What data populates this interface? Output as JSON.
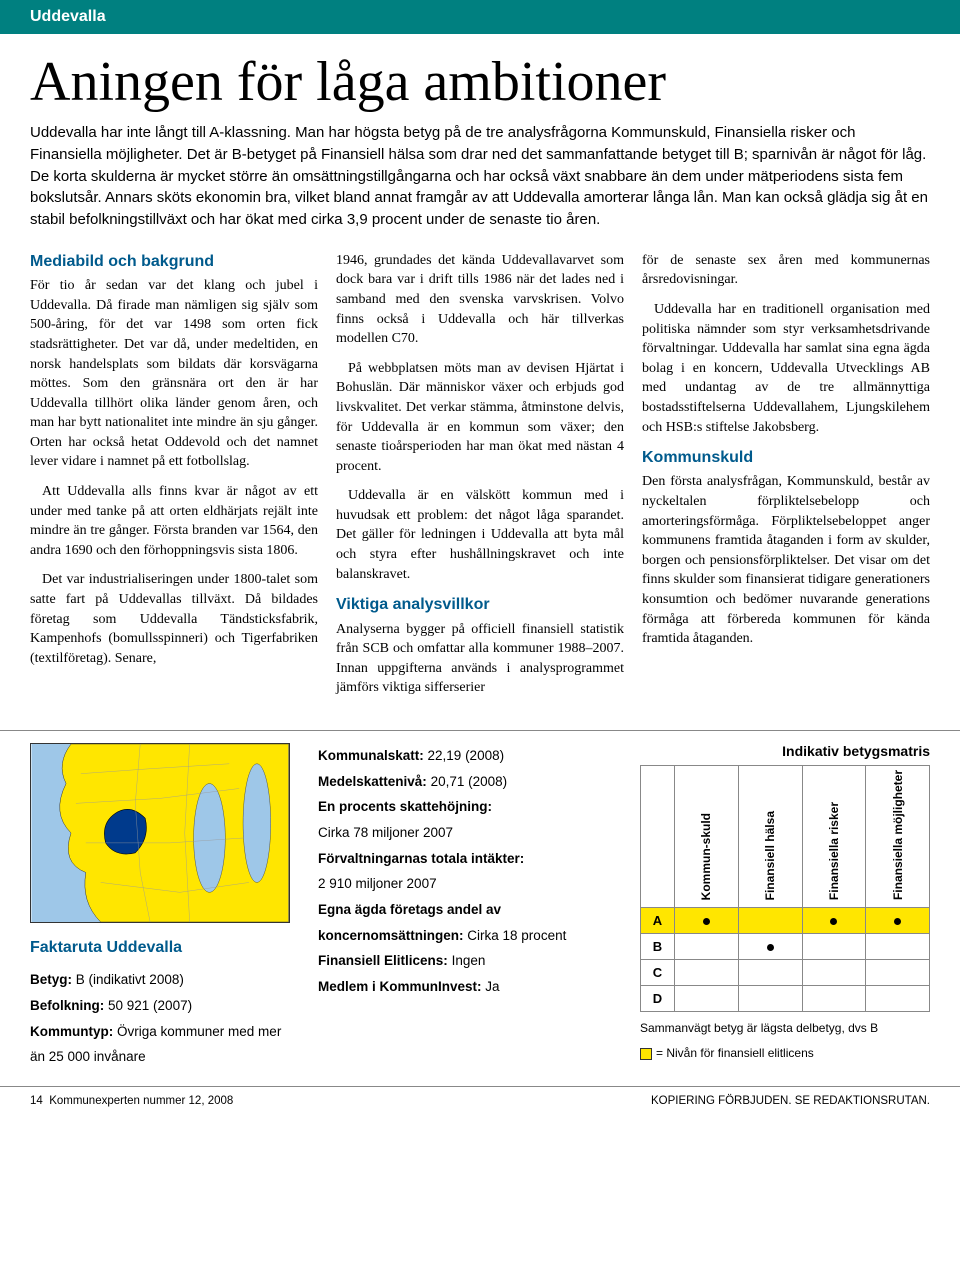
{
  "header": {
    "municipality": "Uddevalla"
  },
  "title": "Aningen för låga ambitioner",
  "intro": "Uddevalla har inte långt till A-klassning. Man har högsta betyg på de tre analysfrågorna Kommunskuld, Finansiella risker och Finansiella möjligheter. Det är B-betyget på Finansiell hälsa som drar ned det sammanfattande betyget till B; sparnivån är något för låg. De korta skulderna är mycket större än omsättningstillgångarna och har också växt snabbare än dem under mätperiodens sista fem bokslutsår. Annars sköts ekonomin bra, vilket bland annat framgår av att Uddevalla amorterar långa lån. Man kan också glädja sig åt en stabil befolkningstillväxt och har ökat med cirka 3,9 procent under de senaste tio åren.",
  "columns": {
    "c1": {
      "heading": "Mediabild och bakgrund",
      "p1": "För tio år sedan var det klang och jubel i Uddevalla. Då firade man nämligen sig själv som 500-åring, för det var 1498 som orten fick stadsrättigheter. Det var då, under medeltiden, en norsk handelsplats som bildats där korsvägarna möttes. Som den gränsnära ort den är har Uddevalla tillhört olika länder genom åren, och man har bytt nationalitet inte mindre än sju gånger. Orten har också hetat Oddevold och det namnet lever vidare i namnet på ett fotbollslag.",
      "p2": "Att Uddevalla alls finns kvar är något av ett under med tanke på att orten eldhärjats rejält inte mindre än tre gånger. Första branden var 1564, den andra 1690 och den förhoppningsvis sista 1806.",
      "p3": "Det var industrialiseringen under 1800-talet som satte fart på Uddevallas tillväxt. Då bildades företag som Uddevalla Tändsticksfabrik, Kampenhofs (bomullsspinneri) och Tigerfabriken (textilföretag). Senare,"
    },
    "c2": {
      "p1": "1946, grundades det kända Uddevallavarvet som dock bara var i drift tills 1986 när det lades ned i samband med den svenska varvskrisen. Volvo finns också i Uddevalla och här tillverkas modellen C70.",
      "p2": "På webbplatsen möts man av devisen Hjärtat i Bohuslän. Där människor växer och erbjuds god livskvalitet. Det verkar stämma, åtminstone delvis, för Uddevalla är en kommun som växer; den senaste tioårsperioden har man ökat med nästan 4 procent.",
      "p3": "Uddevalla är en välskött kommun med i huvudsak ett problem: det något låga sparandet. Det gäller för ledningen i Uddevalla att byta mål och styra efter hushållningskravet och inte balanskravet.",
      "heading2": "Viktiga analysvillkor",
      "p4": "Analyserna bygger på officiell finansiell statistik från SCB och omfattar alla kommuner 1988–2007. Innan uppgifterna används i analysprogrammet jämförs viktiga sifferserier"
    },
    "c3": {
      "p1": "för de senaste sex åren med kommunernas årsredovisningar.",
      "p2": "Uddevalla har en traditionell organisation med politiska nämnder som styr verksamhetsdrivande förvaltningar. Uddevalla har samlat sina egna ägda bolag i en koncern, Uddevalla Utvecklings AB med undantag av de tre allmännyttiga bostadsstiftelserna Uddevallahem, Ljungskilehem och HSB:s stiftelse Jakobsberg.",
      "heading3": "Kommunskuld",
      "p3": "Den första analysfrågan, Kommunskuld, består av nyckeltalen förpliktelsebelopp och amorteringsförmåga. Förpliktelsebeloppet anger kommunens framtida åtaganden i form av skulder, borgen och pensionsförpliktelser. Det visar om det finns skulder som finansierat tidigare generationers konsumtion och bedömer nuvarande generations förmåga att förbereda kommunen för kända framtida åtaganden."
    }
  },
  "facts": {
    "heading": "Faktaruta Uddevalla",
    "betyg_label": "Betyg:",
    "betyg_value": "B (indikativt 2008)",
    "befolkning_label": "Befolkning:",
    "befolkning_value": "50 921 (2007)",
    "kommuntyp_label": "Kommuntyp:",
    "kommuntyp_value": "Övriga kommuner med mer än 25 000 invånare"
  },
  "mid": {
    "ks_label": "Kommunalskatt:",
    "ks_value": "22,19 (2008)",
    "ms_label": "Medelskattenivå:",
    "ms_value": "20,71 (2008)",
    "ep_label": "En procents skattehöjning:",
    "ep_value": "Cirka 78 miljoner 2007",
    "ft_label": "Förvaltningarnas totala intäkter:",
    "ft_value": "2 910 miljoner 2007",
    "ea_label": "Egna ägda företags andel av koncernomsättningen:",
    "ea_value": "Cirka 18 procent",
    "fe_label": "Finansiell Elitlicens:",
    "fe_value": "Ingen",
    "mk_label": "Medlem i KommunInvest:",
    "mk_value": "Ja"
  },
  "matrix": {
    "title": "Indikativ betygsmatris",
    "headers": [
      "Kommun-skuld",
      "Finansiell hälsa",
      "Finansiella risker",
      "Finansiella möjligheter"
    ],
    "rows": [
      {
        "grade": "A",
        "dots": [
          true,
          false,
          true,
          true
        ],
        "highlight": true
      },
      {
        "grade": "B",
        "dots": [
          false,
          true,
          false,
          false
        ],
        "highlight": false
      },
      {
        "grade": "C",
        "dots": [
          false,
          false,
          false,
          false
        ],
        "highlight": false
      },
      {
        "grade": "D",
        "dots": [
          false,
          false,
          false,
          false
        ],
        "highlight": false
      }
    ],
    "note1": "Sammanvägt betyg är lägsta delbetyg, dvs B",
    "note2": "= Nivån för finansiell elitlicens"
  },
  "footer": {
    "left_page": "14",
    "left_text": "Kommunexperten nummer 12, 2008",
    "right": "KOPIERING FÖRBJUDEN. SE REDAKTIONSRUTAN."
  },
  "colors": {
    "header_bg": "#008080",
    "heading_blue": "#005a8c",
    "highlight_yellow": "#ffe600",
    "map_land": "#ffe600",
    "map_water": "#9ec7e8",
    "map_highlight": "#003a8c"
  }
}
